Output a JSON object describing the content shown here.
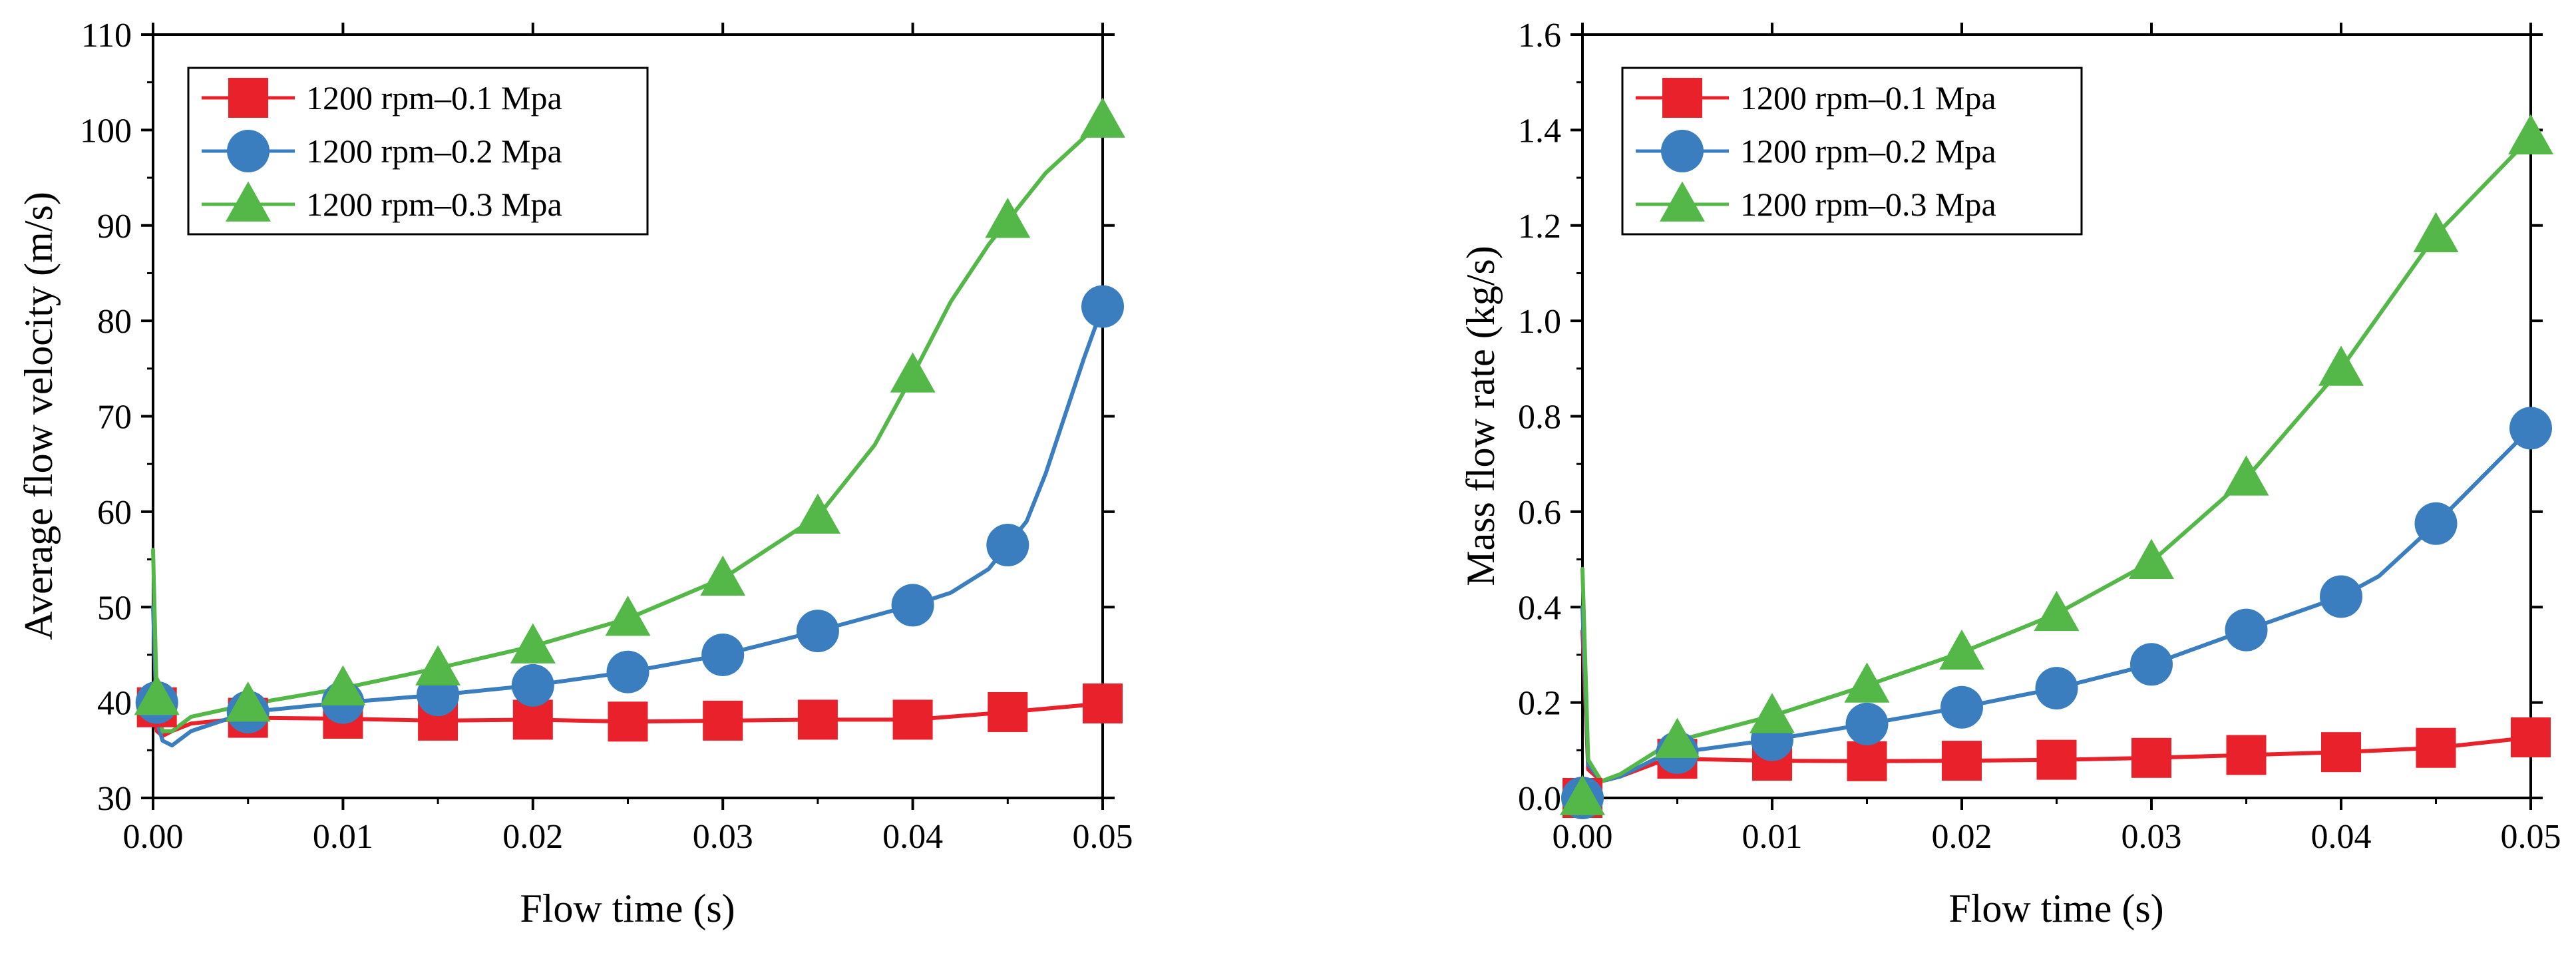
{
  "chart_data": [
    {
      "type": "line",
      "title": "",
      "xlabel": "Flow time (s)",
      "ylabel": "Average flow velocity (m/s)",
      "xlim": [
        0,
        0.05
      ],
      "ylim": [
        30,
        110
      ],
      "xticks": [
        0.0,
        0.01,
        0.02,
        0.03,
        0.04,
        0.05
      ],
      "xtick_labels": [
        "0.00",
        "0.01",
        "0.02",
        "0.03",
        "0.04",
        "0.05"
      ],
      "yticks": [
        30,
        40,
        50,
        60,
        70,
        80,
        90,
        100,
        110
      ],
      "ytick_labels": [
        "30",
        "40",
        "50",
        "60",
        "70",
        "80",
        "90",
        "100",
        "110"
      ],
      "legend_position": "top-left",
      "series": [
        {
          "name": "1200 rpm–0.1 Mpa",
          "color": "#e8212b",
          "marker": "square",
          "x": [
            0,
            0.0002,
            0.0005,
            0.001,
            0.002,
            0.005,
            0.01,
            0.015,
            0.02,
            0.025,
            0.03,
            0.035,
            0.04,
            0.045,
            0.05
          ],
          "y": [
            40,
            37,
            36.5,
            37,
            37.8,
            38.4,
            38.3,
            38.1,
            38.2,
            38.0,
            38.1,
            38.2,
            38.2,
            39.0,
            39.9
          ],
          "marker_x": [
            0.0002,
            0.005,
            0.01,
            0.015,
            0.02,
            0.025,
            0.03,
            0.035,
            0.04,
            0.045,
            0.05
          ],
          "marker_y": [
            39.5,
            38.4,
            38.3,
            38.1,
            38.2,
            38.0,
            38.1,
            38.2,
            38.2,
            39.0,
            39.9
          ]
        },
        {
          "name": "1200 rpm–0.2 Mpa",
          "color": "#3a7ebf",
          "marker": "circle",
          "x": [
            0,
            0.0002,
            0.0005,
            0.001,
            0.002,
            0.005,
            0.01,
            0.015,
            0.02,
            0.025,
            0.03,
            0.035,
            0.04,
            0.042,
            0.044,
            0.045,
            0.046,
            0.047,
            0.048,
            0.049,
            0.05
          ],
          "y": [
            50,
            38,
            36,
            35.5,
            37,
            39,
            40,
            40.8,
            41.8,
            43.2,
            45.0,
            47.5,
            50.2,
            51.5,
            54.0,
            56.5,
            59,
            64,
            70,
            76,
            81.5
          ],
          "marker_x": [
            0.0002,
            0.005,
            0.01,
            0.015,
            0.02,
            0.025,
            0.03,
            0.035,
            0.04,
            0.045,
            0.05
          ],
          "marker_y": [
            40,
            39.0,
            40.0,
            40.8,
            41.8,
            43.2,
            45.0,
            47.5,
            50.2,
            56.5,
            81.5
          ]
        },
        {
          "name": "1200 rpm–0.3 Mpa",
          "color": "#54b848",
          "marker": "triangle",
          "x": [
            0,
            0.0002,
            0.0005,
            0.001,
            0.002,
            0.005,
            0.01,
            0.015,
            0.02,
            0.025,
            0.03,
            0.035,
            0.038,
            0.04,
            0.042,
            0.044,
            0.045,
            0.047,
            0.05
          ],
          "y": [
            56,
            40,
            37,
            37,
            38.5,
            39.8,
            41.5,
            43.6,
            45.9,
            48.8,
            53,
            59.5,
            67,
            74.3,
            82,
            88,
            90.5,
            95.5,
            101
          ],
          "marker_x": [
            0.0002,
            0.005,
            0.01,
            0.015,
            0.02,
            0.025,
            0.03,
            0.035,
            0.04,
            0.045,
            0.05
          ],
          "marker_y": [
            40.5,
            39.8,
            41.5,
            43.6,
            45.9,
            48.8,
            53.0,
            59.5,
            74.3,
            90.5,
            101.0
          ]
        }
      ]
    },
    {
      "type": "line",
      "title": "",
      "xlabel": "Flow time (s)",
      "ylabel": "Mass flow rate (kg/s)",
      "xlim": [
        0,
        0.05
      ],
      "ylim": [
        0,
        1.6
      ],
      "xticks": [
        0.0,
        0.01,
        0.02,
        0.03,
        0.04,
        0.05
      ],
      "xtick_labels": [
        "0.00",
        "0.01",
        "0.02",
        "0.03",
        "0.04",
        "0.05"
      ],
      "yticks": [
        0.0,
        0.2,
        0.4,
        0.6,
        0.8,
        1.0,
        1.2,
        1.4,
        1.6
      ],
      "ytick_labels": [
        "0.0",
        "0.2",
        "0.4",
        "0.6",
        "0.8",
        "1.0",
        "1.2",
        "1.4",
        "1.6"
      ],
      "legend_position": "top-left",
      "series": [
        {
          "name": "1200 rpm–0.1 Mpa",
          "color": "#e8212b",
          "marker": "square",
          "x": [
            0,
            0.0003,
            0.001,
            0.002,
            0.004,
            0.005,
            0.01,
            0.015,
            0.02,
            0.025,
            0.03,
            0.035,
            0.04,
            0.045,
            0.05
          ],
          "y": [
            0.35,
            0.06,
            0.035,
            0.045,
            0.075,
            0.082,
            0.078,
            0.077,
            0.078,
            0.08,
            0.084,
            0.09,
            0.096,
            0.105,
            0.127
          ],
          "marker_x": [
            0,
            0.005,
            0.01,
            0.015,
            0.02,
            0.025,
            0.03,
            0.035,
            0.04,
            0.045,
            0.05
          ],
          "marker_y": [
            0.0,
            0.082,
            0.078,
            0.077,
            0.078,
            0.08,
            0.084,
            0.09,
            0.096,
            0.105,
            0.127
          ]
        },
        {
          "name": "1200 rpm–0.2 Mpa",
          "color": "#3a7ebf",
          "marker": "circle",
          "x": [
            0,
            0.0003,
            0.001,
            0.002,
            0.004,
            0.005,
            0.01,
            0.015,
            0.02,
            0.025,
            0.03,
            0.035,
            0.04,
            0.042,
            0.045,
            0.05
          ],
          "y": [
            0.4,
            0.07,
            0.035,
            0.045,
            0.085,
            0.095,
            0.122,
            0.155,
            0.19,
            0.23,
            0.28,
            0.352,
            0.422,
            0.465,
            0.575,
            0.775
          ],
          "marker_x": [
            0,
            0.005,
            0.01,
            0.015,
            0.02,
            0.025,
            0.03,
            0.035,
            0.04,
            0.045,
            0.05
          ],
          "marker_y": [
            0.0,
            0.095,
            0.122,
            0.155,
            0.19,
            0.23,
            0.28,
            0.352,
            0.422,
            0.575,
            0.775
          ]
        },
        {
          "name": "1200 rpm–0.3 Mpa",
          "color": "#54b848",
          "marker": "triangle",
          "x": [
            0,
            0.0003,
            0.001,
            0.002,
            0.004,
            0.005,
            0.01,
            0.015,
            0.02,
            0.025,
            0.03,
            0.035,
            0.04,
            0.045,
            0.05
          ],
          "y": [
            0.48,
            0.08,
            0.035,
            0.05,
            0.1,
            0.12,
            0.172,
            0.236,
            0.305,
            0.386,
            0.495,
            0.67,
            0.9,
            1.18,
            1.385
          ],
          "marker_x": [
            0,
            0.005,
            0.01,
            0.015,
            0.02,
            0.025,
            0.03,
            0.035,
            0.04,
            0.045,
            0.05
          ],
          "marker_y": [
            0.0,
            0.12,
            0.172,
            0.236,
            0.305,
            0.386,
            0.495,
            0.67,
            0.9,
            1.18,
            1.385
          ]
        }
      ]
    }
  ]
}
